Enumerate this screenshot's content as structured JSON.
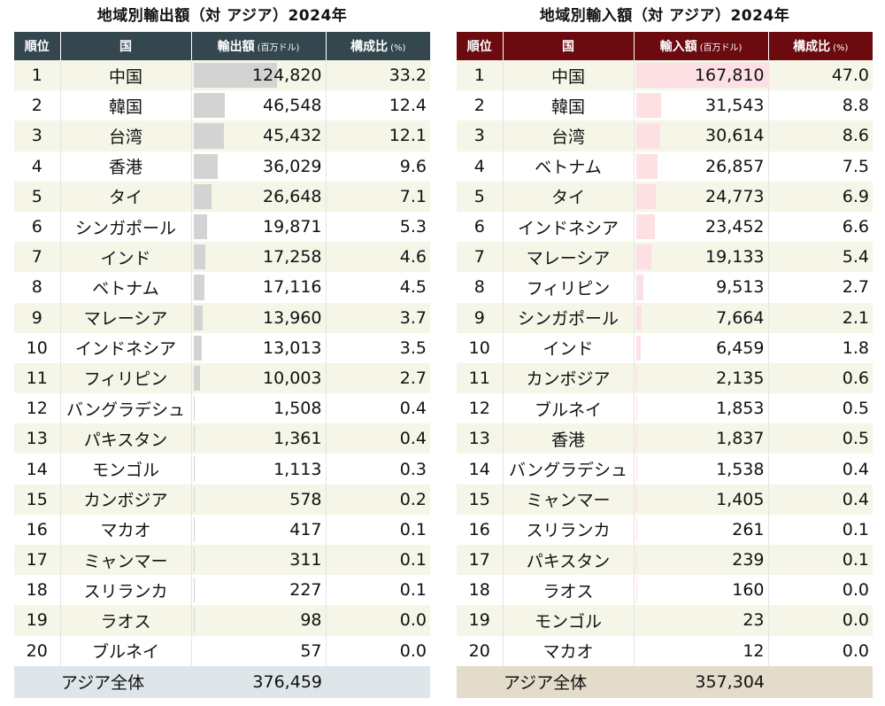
{
  "chart_data": [
    {
      "type": "table",
      "title": "地域別輸出額（対 アジア）2024年",
      "headers": {
        "rank": "順位",
        "name": "国",
        "value": "輸出額",
        "value_unit": "(百万ドル)",
        "share": "構成比",
        "share_unit": "(%)"
      },
      "rows": [
        {
          "rank": "1",
          "name": "中国",
          "value": "124,820",
          "share": "33.2"
        },
        {
          "rank": "2",
          "name": "韓国",
          "value": "46,548",
          "share": "12.4"
        },
        {
          "rank": "3",
          "name": "台湾",
          "value": "45,432",
          "share": "12.1"
        },
        {
          "rank": "4",
          "name": "香港",
          "value": "36,029",
          "share": "9.6"
        },
        {
          "rank": "5",
          "name": "タイ",
          "value": "26,648",
          "share": "7.1"
        },
        {
          "rank": "6",
          "name": "シンガポール",
          "value": "19,871",
          "share": "5.3"
        },
        {
          "rank": "7",
          "name": "インド",
          "value": "17,258",
          "share": "4.6"
        },
        {
          "rank": "8",
          "name": "ベトナム",
          "value": "17,116",
          "share": "4.5"
        },
        {
          "rank": "9",
          "name": "マレーシア",
          "value": "13,960",
          "share": "3.7"
        },
        {
          "rank": "10",
          "name": "インドネシア",
          "value": "13,013",
          "share": "3.5"
        },
        {
          "rank": "11",
          "name": "フィリピン",
          "value": "10,003",
          "share": "2.7"
        },
        {
          "rank": "12",
          "name": "バングラデシュ",
          "value": "1,508",
          "share": "0.4"
        },
        {
          "rank": "13",
          "name": "パキスタン",
          "value": "1,361",
          "share": "0.4"
        },
        {
          "rank": "14",
          "name": "モンゴル",
          "value": "1,113",
          "share": "0.3"
        },
        {
          "rank": "15",
          "name": "カンボジア",
          "value": "578",
          "share": "0.2"
        },
        {
          "rank": "16",
          "name": "マカオ",
          "value": "417",
          "share": "0.1"
        },
        {
          "rank": "17",
          "name": "ミャンマー",
          "value": "311",
          "share": "0.1"
        },
        {
          "rank": "18",
          "name": "スリランカ",
          "value": "227",
          "share": "0.1"
        },
        {
          "rank": "19",
          "name": "ラオス",
          "value": "98",
          "share": "0.0"
        },
        {
          "rank": "20",
          "name": "ブルネイ",
          "value": "57",
          "share": "0.0"
        }
      ],
      "total": {
        "label": "アジア全体",
        "value": "376,459"
      },
      "bar_color": "#d3d3d3",
      "header_color": "#34474f"
    },
    {
      "type": "table",
      "title": "地域別輸入額（対 アジア）2024年",
      "headers": {
        "rank": "順位",
        "name": "国",
        "value": "輸入額",
        "value_unit": "(百万ドル)",
        "share": "構成比",
        "share_unit": "(%)"
      },
      "rows": [
        {
          "rank": "1",
          "name": "中国",
          "value": "167,810",
          "share": "47.0"
        },
        {
          "rank": "2",
          "name": "韓国",
          "value": "31,543",
          "share": "8.8"
        },
        {
          "rank": "3",
          "name": "台湾",
          "value": "30,614",
          "share": "8.6"
        },
        {
          "rank": "4",
          "name": "ベトナム",
          "value": "26,857",
          "share": "7.5"
        },
        {
          "rank": "5",
          "name": "タイ",
          "value": "24,773",
          "share": "6.9"
        },
        {
          "rank": "6",
          "name": "インドネシア",
          "value": "23,452",
          "share": "6.6"
        },
        {
          "rank": "7",
          "name": "マレーシア",
          "value": "19,133",
          "share": "5.4"
        },
        {
          "rank": "8",
          "name": "フィリピン",
          "value": "9,513",
          "share": "2.7"
        },
        {
          "rank": "9",
          "name": "シンガポール",
          "value": "7,664",
          "share": "2.1"
        },
        {
          "rank": "10",
          "name": "インド",
          "value": "6,459",
          "share": "1.8"
        },
        {
          "rank": "11",
          "name": "カンボジア",
          "value": "2,135",
          "share": "0.6"
        },
        {
          "rank": "12",
          "name": "ブルネイ",
          "value": "1,853",
          "share": "0.5"
        },
        {
          "rank": "13",
          "name": "香港",
          "value": "1,837",
          "share": "0.5"
        },
        {
          "rank": "14",
          "name": "バングラデシュ",
          "value": "1,538",
          "share": "0.4"
        },
        {
          "rank": "15",
          "name": "ミャンマー",
          "value": "1,405",
          "share": "0.4"
        },
        {
          "rank": "16",
          "name": "スリランカ",
          "value": "261",
          "share": "0.1"
        },
        {
          "rank": "17",
          "name": "パキスタン",
          "value": "239",
          "share": "0.1"
        },
        {
          "rank": "18",
          "name": "ラオス",
          "value": "160",
          "share": "0.0"
        },
        {
          "rank": "19",
          "name": "モンゴル",
          "value": "23",
          "share": "0.0"
        },
        {
          "rank": "20",
          "name": "マカオ",
          "value": "12",
          "share": "0.0"
        }
      ],
      "total": {
        "label": "アジア全体",
        "value": "357,304"
      },
      "bar_color": "#fde0e3",
      "header_color": "#6b0a0f"
    }
  ]
}
